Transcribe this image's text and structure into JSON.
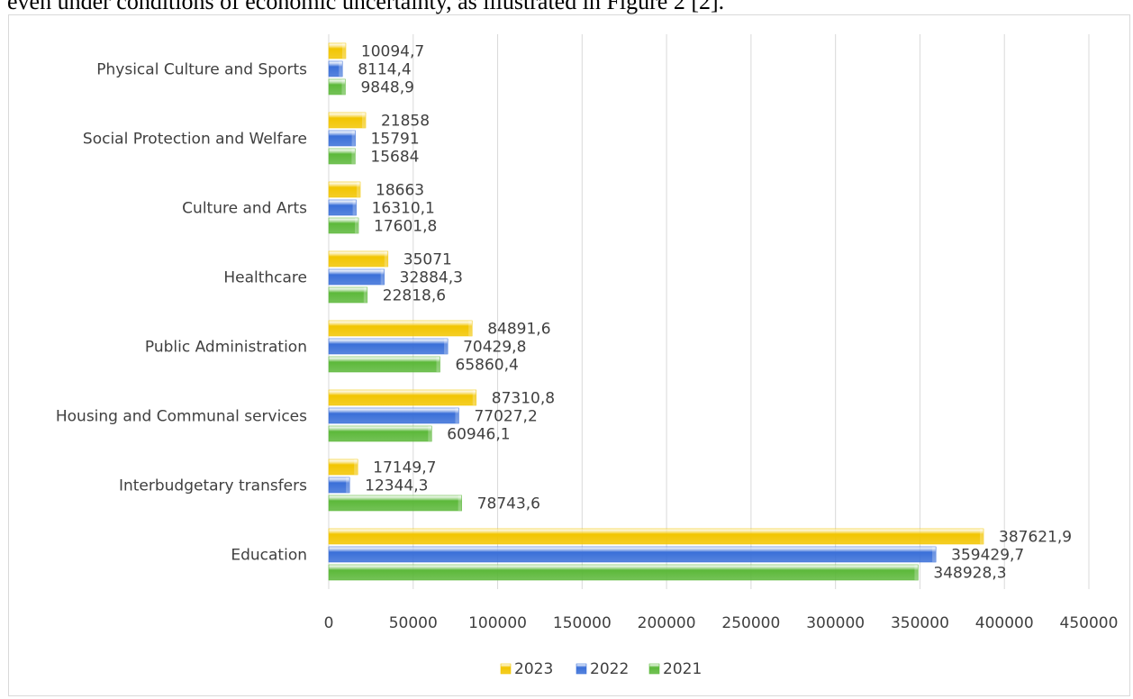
{
  "caption": "even under conditions of economic uncertainty, as illustrated in Figure 2 [2].",
  "chart_data": {
    "type": "bar",
    "orientation": "horizontal",
    "categories": [
      "Physical Culture and Sports",
      "Social Protection and Welfare",
      "Culture and Arts",
      "Healthcare",
      "Public Administration",
      "Housing and Communal services",
      "Interbudgetary transfers",
      "Education"
    ],
    "series": [
      {
        "name": "2023",
        "color": "#f2c500",
        "values": [
          10094.7,
          21858,
          18663,
          35071,
          84891.6,
          87310.8,
          17149.7,
          387621.9
        ],
        "labels": [
          "10094,7",
          "21858",
          "18663",
          "35071",
          "84891,6",
          "87310,8",
          "17149,7",
          "387621,9"
        ]
      },
      {
        "name": "2022",
        "color": "#3a6fd8",
        "values": [
          8114.4,
          15791,
          16310.1,
          32884.3,
          70429.8,
          77027.2,
          12344.3,
          359429.7
        ],
        "labels": [
          "8114,4",
          "15791",
          "16310,1",
          "32884,3",
          "70429,8",
          "77027,2",
          "12344,3",
          "359429,7"
        ]
      },
      {
        "name": "2021",
        "color": "#5cb83a",
        "values": [
          9848.9,
          15684,
          17601.8,
          22818.6,
          65860.4,
          60946.1,
          78743.6,
          348928.3
        ],
        "labels": [
          "9848,9",
          "15684",
          "17601,8",
          "22818,6",
          "65860,4",
          "60946,1",
          "78743,6",
          "348928,3"
        ]
      }
    ],
    "xlim": [
      0,
      450000
    ],
    "xticks": [
      "0",
      "50000",
      "100000",
      "150000",
      "200000",
      "250000",
      "300000",
      "350000",
      "400000",
      "450000"
    ],
    "grid": true,
    "legend_position": "bottom",
    "legend": [
      "2023",
      "2022",
      "2021"
    ]
  }
}
